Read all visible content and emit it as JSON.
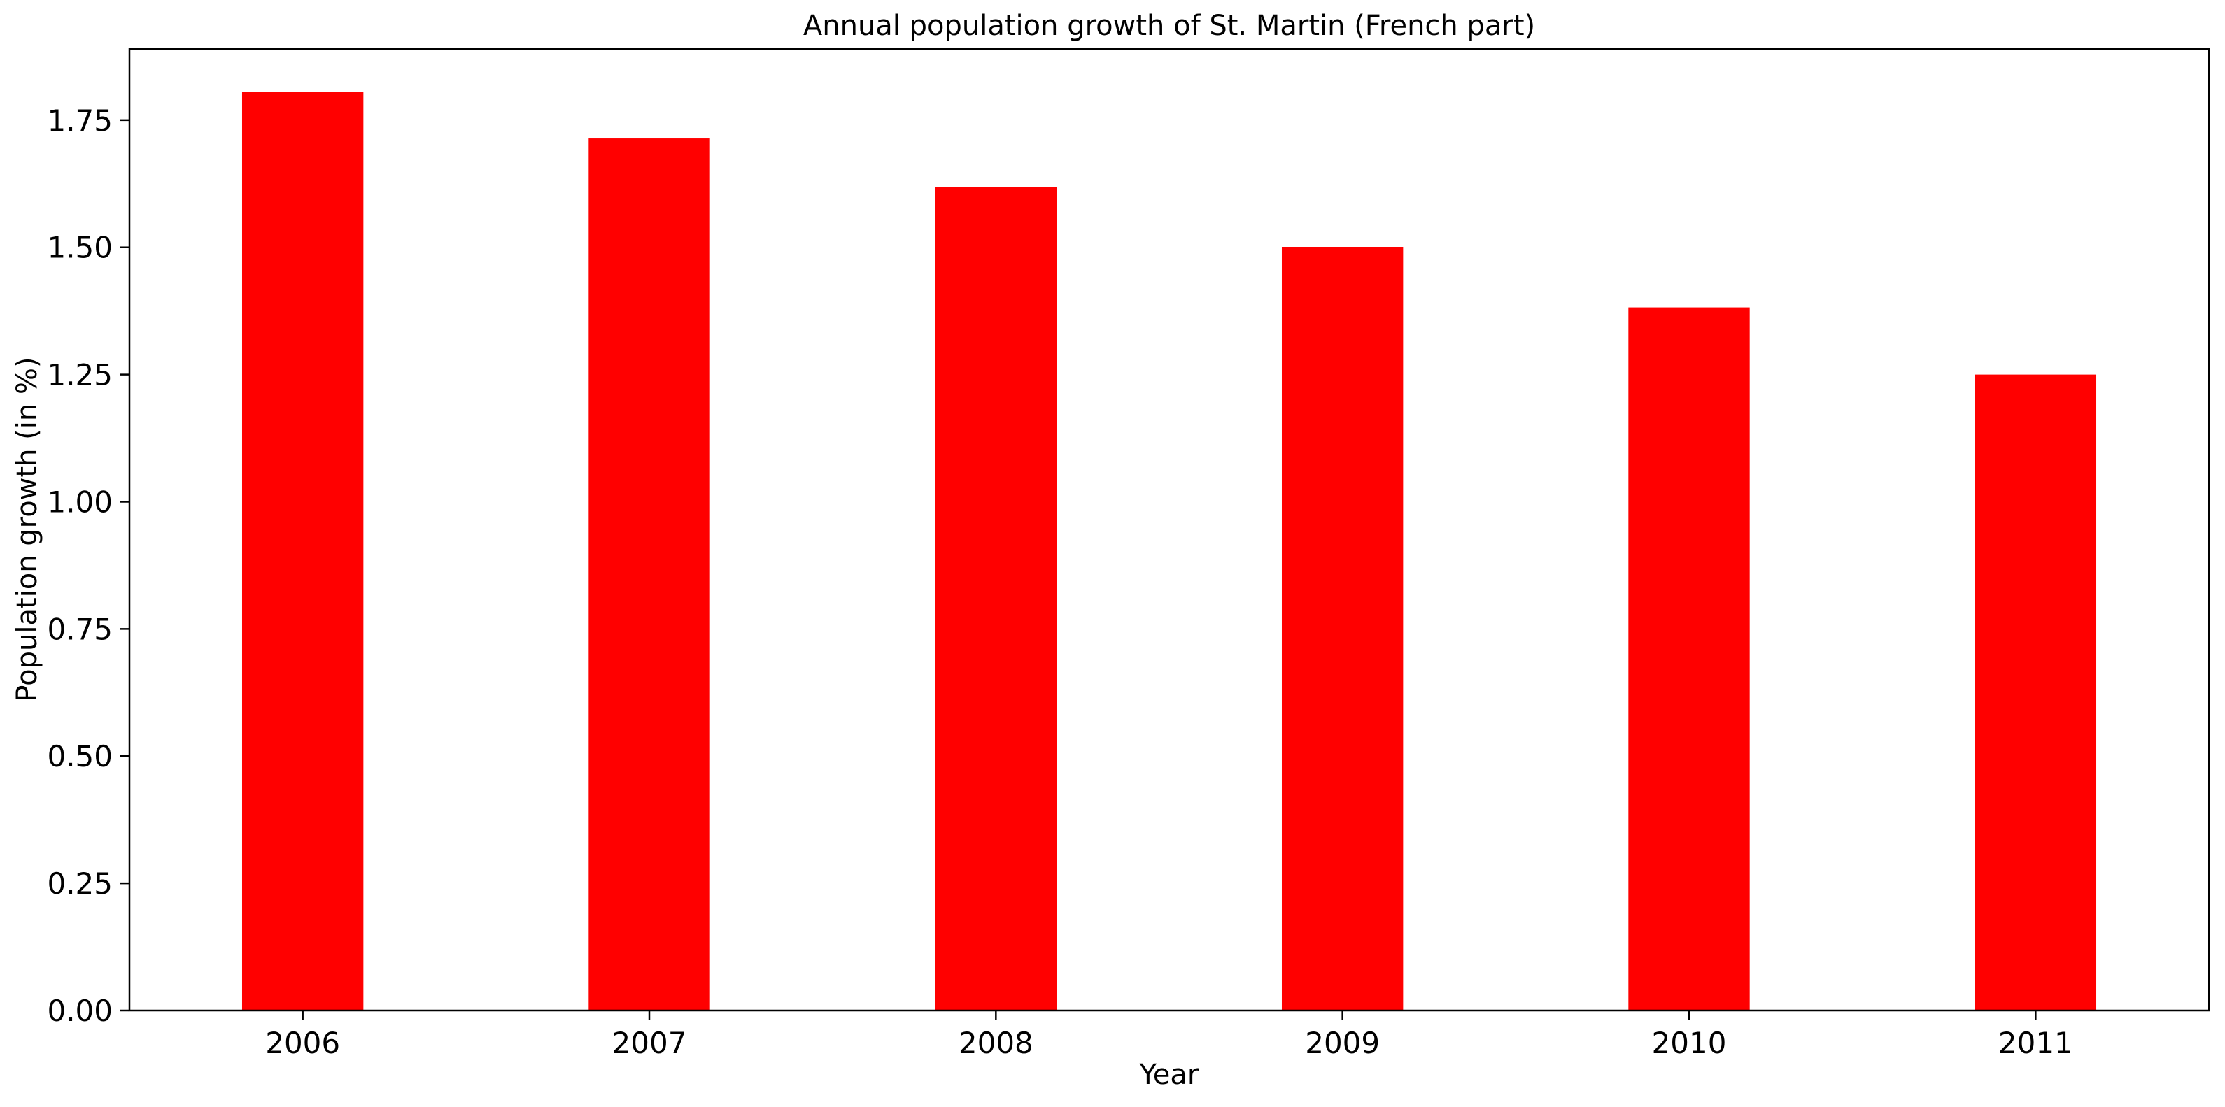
{
  "chart_data": {
    "type": "bar",
    "title": "Annual population growth of St. Martin (French part)",
    "xlabel": "Year",
    "ylabel": "Population growth (in %)",
    "categories": [
      "2006",
      "2007",
      "2008",
      "2009",
      "2010",
      "2011"
    ],
    "values": [
      1.805,
      1.714,
      1.619,
      1.501,
      1.382,
      1.25
    ],
    "ylim": [
      0,
      1.89
    ],
    "yticks": [
      0.0,
      0.25,
      0.5,
      0.75,
      1.0,
      1.25,
      1.5,
      1.75
    ],
    "ytick_labels": [
      "0.00",
      "0.25",
      "0.50",
      "0.75",
      "1.00",
      "1.25",
      "1.50",
      "1.75"
    ],
    "bar_color": "#ff0000",
    "grid": false,
    "legend": "none"
  }
}
